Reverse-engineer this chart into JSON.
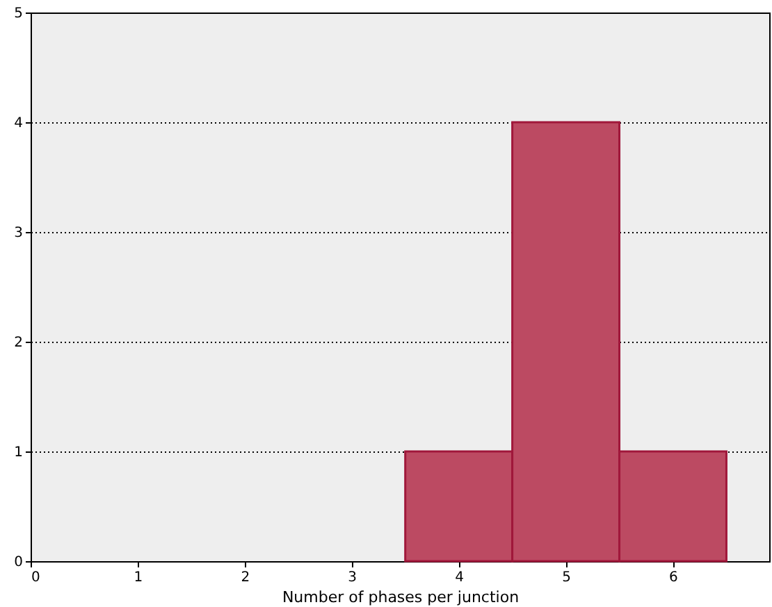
{
  "chart_data": {
    "type": "histogram",
    "xlabel": "Number of phases per junction",
    "bins": [
      3.5,
      4.5,
      5.5,
      6.5
    ],
    "values": [
      1,
      4,
      1
    ],
    "color": "#bc4a62",
    "xlim": [
      0,
      6.9
    ],
    "xticks": [
      0,
      1,
      2,
      3,
      4,
      5,
      6
    ],
    "ylim": [
      0,
      5
    ],
    "yticks": [
      0,
      1,
      2,
      3,
      4,
      5
    ],
    "grid": "y"
  }
}
